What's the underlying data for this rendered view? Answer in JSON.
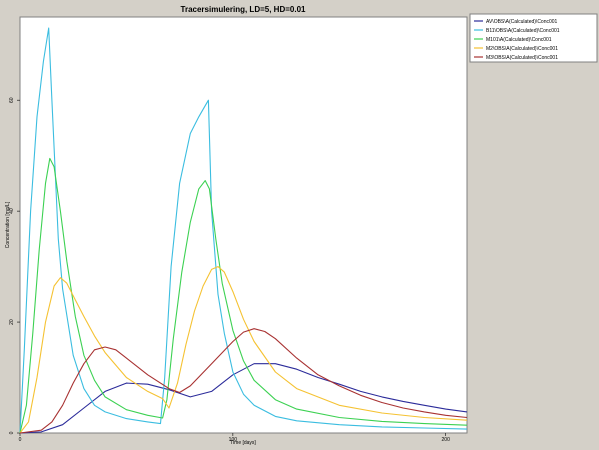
{
  "chart_data": {
    "type": "line",
    "title": "Tracersimulering, LD=5, HD=0.01",
    "xlabel": "Time  [days]",
    "ylabel": "Concentration  [mg/L]",
    "xlim": [
      0,
      210
    ],
    "ylim": [
      0,
      75
    ],
    "xticks": [
      0,
      100,
      200
    ],
    "yticks": [
      0,
      20,
      40,
      60
    ],
    "grid": false,
    "legend_position": "top-right",
    "series": [
      {
        "name": "AV\\OBS\\A(Calculated)\\Conc001",
        "color": "#2b2b9a",
        "x": [
          0,
          10,
          20,
          30,
          40,
          50,
          60,
          70,
          80,
          90,
          100,
          110,
          120,
          130,
          140,
          150,
          160,
          170,
          180,
          190,
          200,
          210
        ],
        "y": [
          0,
          0.2,
          1.5,
          4.5,
          7.5,
          9,
          8.8,
          7.8,
          6.5,
          7.5,
          10.5,
          12.5,
          12.5,
          11.5,
          10,
          8.8,
          7.5,
          6.5,
          5.7,
          5,
          4.3,
          3.8
        ]
      },
      {
        "name": "B11\\OBS\\A(Calculated)\\Conc001",
        "color": "#3bbde0",
        "x": [
          0,
          2,
          5,
          8,
          11,
          13.5,
          15,
          18,
          20,
          25,
          30,
          35,
          40,
          50,
          60,
          66,
          68,
          71,
          75,
          80,
          84,
          87,
          88.5,
          90,
          93,
          96,
          100,
          105,
          110,
          120,
          130,
          150,
          170,
          190,
          210
        ],
        "y": [
          0,
          15,
          40,
          57,
          67,
          73,
          60,
          35,
          26,
          14,
          8,
          5,
          3.8,
          2.6,
          2,
          1.7,
          10,
          30,
          45,
          54,
          57,
          59,
          60,
          40,
          25,
          18,
          11,
          7,
          5,
          3,
          2.2,
          1.5,
          1.1,
          0.9,
          0.7
        ]
      },
      {
        "name": "M101\\A(Calculated)\\Conc001",
        "color": "#3cd152",
        "x": [
          0,
          3,
          6,
          9,
          12,
          14,
          16,
          19,
          22,
          26,
          30,
          35,
          40,
          50,
          60,
          67,
          69,
          72,
          76,
          80,
          84,
          87,
          89,
          92,
          95,
          100,
          105,
          110,
          120,
          130,
          150,
          170,
          190,
          210
        ],
        "y": [
          0,
          5,
          18,
          33,
          45,
          49.5,
          48,
          40,
          31,
          21,
          14,
          9.5,
          6.5,
          4.2,
          3.2,
          2.7,
          6,
          17,
          29,
          38,
          44,
          45.5,
          44,
          35,
          27,
          18.5,
          13,
          9.5,
          6,
          4.3,
          2.8,
          2.1,
          1.7,
          1.4
        ]
      },
      {
        "name": "M2\\OBS\\A(Calculated)\\Conc001",
        "color": "#f5c232",
        "x": [
          0,
          4,
          8,
          12,
          16,
          19,
          22,
          26,
          30,
          35,
          40,
          50,
          60,
          67,
          70,
          74,
          78,
          82,
          86,
          90,
          93,
          96,
          100,
          105,
          110,
          120,
          130,
          150,
          170,
          190,
          210
        ],
        "y": [
          0,
          2,
          10,
          20,
          26.5,
          28,
          27,
          24,
          21,
          17.5,
          14.5,
          10,
          7.5,
          6.2,
          4.5,
          9,
          16,
          22,
          26.5,
          29.5,
          30,
          29,
          25.5,
          20.5,
          16.5,
          11,
          8,
          5,
          3.6,
          2.8,
          2.3
        ]
      },
      {
        "name": "M3\\OBS\\A(Calculated)\\Conc001",
        "color": "#a83232",
        "x": [
          0,
          10,
          15,
          20,
          25,
          30,
          35,
          40,
          45,
          50,
          60,
          70,
          75,
          80,
          90,
          100,
          105,
          110,
          115,
          120,
          130,
          140,
          150,
          160,
          170,
          180,
          190,
          200,
          210
        ],
        "y": [
          0,
          0.5,
          2,
          5,
          9,
          12.5,
          15,
          15.5,
          15,
          13.5,
          10.5,
          8,
          7.3,
          8.5,
          12.5,
          16.5,
          18.2,
          18.8,
          18.3,
          17,
          13.5,
          10.5,
          8.5,
          6.8,
          5.5,
          4.5,
          3.8,
          3.2,
          2.8
        ]
      }
    ]
  }
}
